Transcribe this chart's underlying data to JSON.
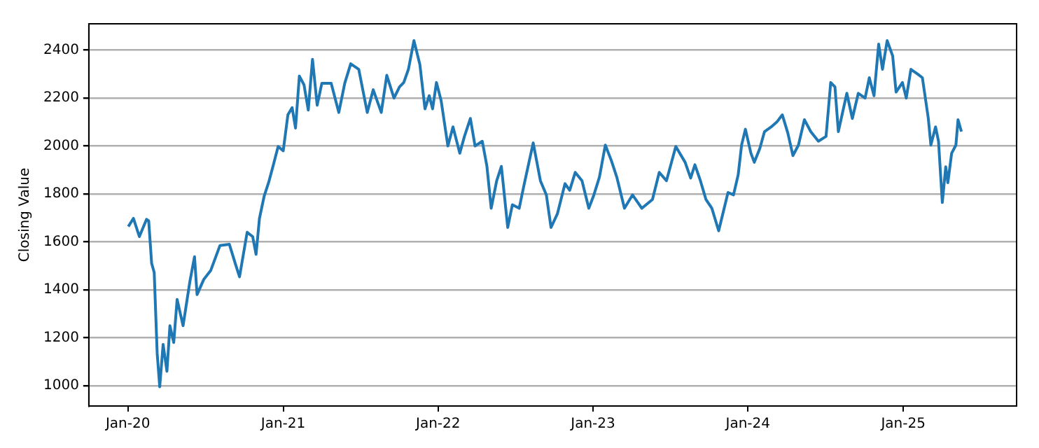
{
  "chart_data": {
    "type": "line",
    "ylabel": "Closing Value",
    "xlim": [
      "2019-10-01",
      "2025-09-25"
    ],
    "xticks": [
      {
        "value": "2020-01-01",
        "label": "Jan-20"
      },
      {
        "value": "2021-01-01",
        "label": "Jan-21"
      },
      {
        "value": "2022-01-01",
        "label": "Jan-22"
      },
      {
        "value": "2023-01-01",
        "label": "Jan-23"
      },
      {
        "value": "2024-01-01",
        "label": "Jan-24"
      },
      {
        "value": "2025-01-01",
        "label": "Jan-25"
      }
    ],
    "ylim": [
      915,
      2510
    ],
    "yticks": [
      1000,
      1200,
      1400,
      1600,
      1800,
      2000,
      2200,
      2400
    ],
    "grid": "y",
    "legend": false,
    "marker": "none",
    "line_style": "solid",
    "x": [
      "2020-01-02",
      "2020-01-14",
      "2020-01-28",
      "2020-02-14",
      "2020-02-19",
      "2020-02-26",
      "2020-03-03",
      "2020-03-10",
      "2020-03-16",
      "2020-03-24",
      "2020-04-02",
      "2020-04-09",
      "2020-04-18",
      "2020-04-26",
      "2020-05-10",
      "2020-05-26",
      "2020-06-06",
      "2020-06-12",
      "2020-06-28",
      "2020-07-14",
      "2020-08-05",
      "2020-08-27",
      "2020-09-10",
      "2020-09-20",
      "2020-10-08",
      "2020-10-21",
      "2020-10-29",
      "2020-11-06",
      "2020-11-17",
      "2020-11-28",
      "2020-12-09",
      "2020-12-20",
      "2021-01-01",
      "2021-01-12",
      "2021-01-22",
      "2021-01-30",
      "2021-02-08",
      "2021-02-19",
      "2021-03-01",
      "2021-03-11",
      "2021-03-22",
      "2021-04-02",
      "2021-04-24",
      "2021-05-12",
      "2021-05-26",
      "2021-06-09",
      "2021-06-28",
      "2021-07-18",
      "2021-08-01",
      "2021-08-20",
      "2021-09-02",
      "2021-09-19",
      "2021-10-02",
      "2021-10-12",
      "2021-10-23",
      "2021-11-05",
      "2021-11-19",
      "2021-12-01",
      "2021-12-11",
      "2021-12-19",
      "2021-12-28",
      "2022-01-08",
      "2022-01-24",
      "2022-02-05",
      "2022-02-21",
      "2022-03-04",
      "2022-03-18",
      "2022-03-29",
      "2022-04-15",
      "2022-04-26",
      "2022-05-06",
      "2022-05-19",
      "2022-05-30",
      "2022-06-14",
      "2022-06-25",
      "2022-07-11",
      "2022-07-22",
      "2022-08-13",
      "2022-08-30",
      "2022-09-13",
      "2022-09-24",
      "2022-10-09",
      "2022-10-27",
      "2022-11-07",
      "2022-11-20",
      "2022-12-06",
      "2022-12-22",
      "2023-01-03",
      "2023-01-16",
      "2023-01-30",
      "2023-02-13",
      "2023-02-26",
      "2023-03-16",
      "2023-04-04",
      "2023-04-26",
      "2023-05-21",
      "2023-06-06",
      "2023-06-23",
      "2023-07-15",
      "2023-08-06",
      "2023-08-19",
      "2023-08-29",
      "2023-09-11",
      "2023-09-24",
      "2023-10-08",
      "2023-10-24",
      "2023-11-06",
      "2023-11-15",
      "2023-11-28",
      "2023-12-09",
      "2023-12-17",
      "2023-12-26",
      "2024-01-08",
      "2024-01-16",
      "2024-01-29",
      "2024-02-09",
      "2024-02-25",
      "2024-03-09",
      "2024-03-22",
      "2024-04-04",
      "2024-04-16",
      "2024-04-29",
      "2024-05-13",
      "2024-05-28",
      "2024-06-15",
      "2024-07-03",
      "2024-07-14",
      "2024-07-24",
      "2024-08-01",
      "2024-08-21",
      "2024-09-03",
      "2024-09-17",
      "2024-10-03",
      "2024-10-13",
      "2024-10-24",
      "2024-11-04",
      "2024-11-13",
      "2024-11-24",
      "2024-12-07",
      "2024-12-15",
      "2024-12-30",
      "2025-01-08",
      "2025-01-19",
      "2025-02-04",
      "2025-02-15",
      "2025-03-01",
      "2025-03-07",
      "2025-03-18",
      "2025-03-25",
      "2025-04-03",
      "2025-04-11",
      "2025-04-16",
      "2025-04-25",
      "2025-05-05",
      "2025-05-10",
      "2025-05-18"
    ],
    "series": [
      {
        "color": "#1f77b4",
        "values": [
          1664,
          1698,
          1622,
          1694,
          1688,
          1510,
          1472,
          1135,
          995,
          1172,
          1060,
          1250,
          1180,
          1360,
          1250,
          1434,
          1538,
          1380,
          1444,
          1480,
          1585,
          1590,
          1510,
          1454,
          1640,
          1622,
          1548,
          1698,
          1790,
          1850,
          1923,
          1998,
          1980,
          2130,
          2160,
          2075,
          2292,
          2255,
          2150,
          2362,
          2170,
          2262,
          2262,
          2140,
          2262,
          2343,
          2320,
          2140,
          2235,
          2140,
          2295,
          2200,
          2247,
          2265,
          2320,
          2440,
          2340,
          2155,
          2210,
          2155,
          2265,
          2190,
          2000,
          2080,
          1970,
          2040,
          2115,
          2000,
          2020,
          1915,
          1740,
          1855,
          1915,
          1660,
          1755,
          1740,
          1834,
          2013,
          1855,
          1796,
          1660,
          1717,
          1843,
          1815,
          1890,
          1855,
          1740,
          1796,
          1870,
          2004,
          1940,
          1870,
          1740,
          1796,
          1740,
          1777,
          1890,
          1855,
          1998,
          1932,
          1866,
          1922,
          1855,
          1777,
          1740,
          1646,
          1740,
          1806,
          1796,
          1880,
          2004,
          2070,
          1970,
          1932,
          1990,
          2060,
          2080,
          2100,
          2130,
          2054,
          1960,
          2004,
          2110,
          2060,
          2020,
          2040,
          2265,
          2247,
          2060,
          2220,
          2115,
          2220,
          2200,
          2285,
          2210,
          2425,
          2320,
          2440,
          2376,
          2225,
          2265,
          2200,
          2320,
          2300,
          2285,
          2115,
          2004,
          2080,
          2020,
          1764,
          1913,
          1847,
          1970,
          2004,
          2110,
          2060
        ]
      }
    ]
  }
}
